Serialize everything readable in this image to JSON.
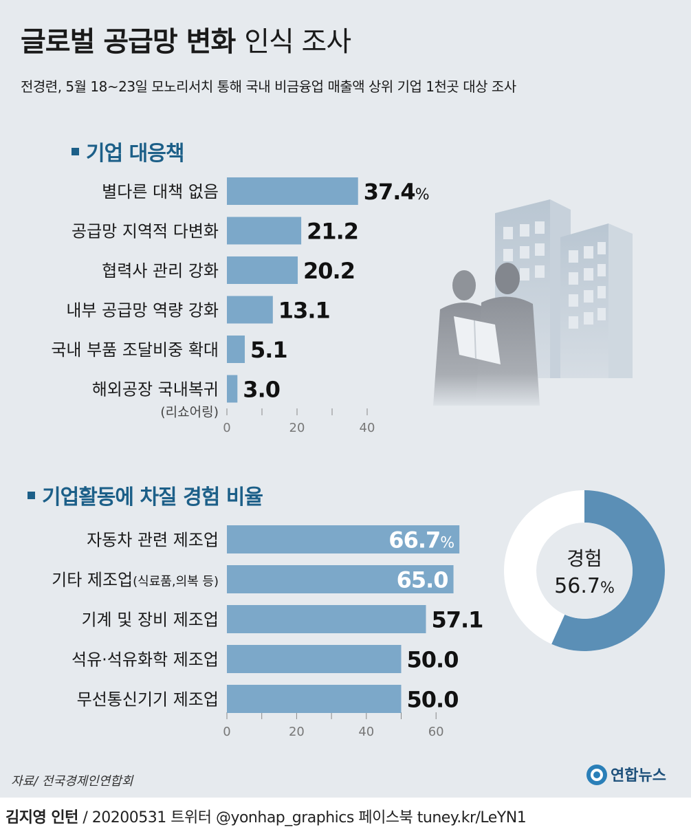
{
  "header": {
    "title_bold": "글로벌 공급망 변화",
    "title_light": "인식 조사",
    "subtitle": "전경련, 5월 18~23일 모노리서치 통해 국내 비금융업 매출액 상위 기업 1천곳 대상 조사"
  },
  "section1": {
    "title": "기업 대응책"
  },
  "section2": {
    "title": "기업활동에 차질 경험 비율"
  },
  "chart_data": [
    {
      "type": "bar",
      "orientation": "horizontal",
      "title": "기업 대응책",
      "categories": [
        "별다른 대책 없음",
        "공급망 지역적 다변화",
        "협력사 관리 강화",
        "내부 공급망 역량 강화",
        "국내 부품 조달비중 확대",
        "해외공장 국내복귀"
      ],
      "category_notes": [
        "",
        "",
        "",
        "",
        "",
        "(리쇼어링)"
      ],
      "values": [
        37.4,
        21.2,
        20.2,
        13.1,
        5.1,
        3.0
      ],
      "value_labels": [
        "37.4",
        "21.2",
        "20.2",
        "13.1",
        "5.1",
        "3.0"
      ],
      "first_unit": "%",
      "xticks": [
        "0",
        "20",
        "40"
      ],
      "xlim": [
        0,
        40
      ],
      "bar_color": "#7ca8c9"
    },
    {
      "type": "bar",
      "orientation": "horizontal",
      "title": "기업활동에 차질 경험 비율",
      "categories": [
        "자동차 관련 제조업",
        "기타 제조업",
        "기계 및 장비 제조업",
        "석유·석유화학 제조업",
        "무선통신기기 제조업"
      ],
      "category_notes": [
        "",
        "(식료품,의복 등)",
        "",
        "",
        ""
      ],
      "values": [
        66.7,
        65.0,
        57.1,
        50.0,
        50.0
      ],
      "value_labels": [
        "66.7",
        "65.0",
        "57.1",
        "50.0",
        "50.0"
      ],
      "first_unit": "%",
      "xticks": [
        "0",
        "20",
        "40",
        "60"
      ],
      "xlim": [
        0,
        60
      ],
      "bar_color": "#7ca8c9"
    },
    {
      "type": "pie",
      "style": "donut",
      "center_label": "경험",
      "center_value": "56.7",
      "unit": "%",
      "value": 56.7,
      "color": "#5b8fb6",
      "rest_color": "#ffffff"
    }
  ],
  "source": "자료/ 전국경제인연합회",
  "footer": {
    "author": "김지영 인턴",
    "rest": " / 20200531  트위터 @yonhap_graphics  페이스북 tuney.kr/LeYN1"
  },
  "logo": {
    "text": "연합뉴스"
  },
  "colors": {
    "section_title": "#1c5f88",
    "bar": "#7ca8c9",
    "donut": "#5b8fb6",
    "background": "#e6eaee"
  }
}
